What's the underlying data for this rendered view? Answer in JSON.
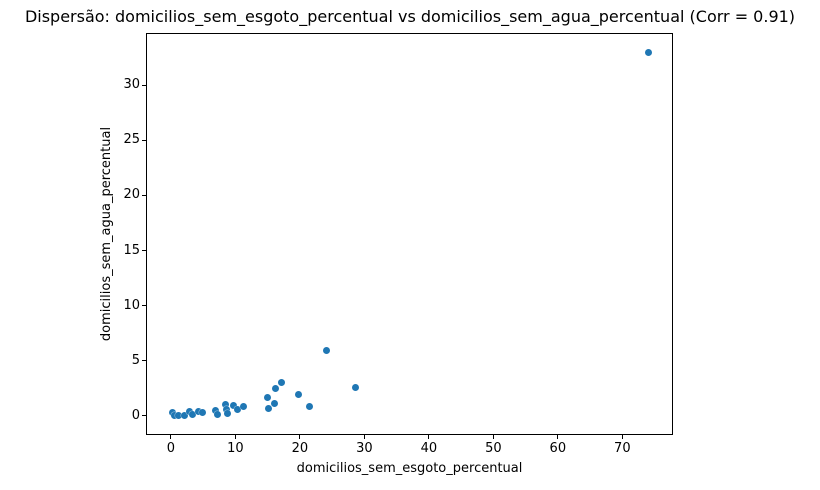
{
  "chart_data": {
    "type": "scatter",
    "title": "Dispersão: domicilios_sem_esgoto_percentual vs domicilios_sem_agua_percentual (Corr = 0.91)",
    "xlabel": "domicilios_sem_esgoto_percentual",
    "ylabel": "domicilios_sem_agua_percentual",
    "correlation": 0.91,
    "marker_color": "#1f77b4",
    "grid": false,
    "legend": "none",
    "xlim": [
      -3.7,
      77.7
    ],
    "ylim": [
      -1.65,
      34.65
    ],
    "x_ticks": [
      0,
      10,
      20,
      30,
      40,
      50,
      60,
      70
    ],
    "y_ticks": [
      0,
      5,
      10,
      15,
      20,
      25,
      30
    ],
    "points": [
      [
        0.2,
        0.3
      ],
      [
        0.5,
        0.05
      ],
      [
        1.2,
        0.0
      ],
      [
        2.1,
        0.05
      ],
      [
        2.9,
        0.35
      ],
      [
        3.4,
        0.1
      ],
      [
        4.3,
        0.4
      ],
      [
        4.9,
        0.3
      ],
      [
        6.9,
        0.45
      ],
      [
        7.3,
        0.1
      ],
      [
        8.5,
        1.0
      ],
      [
        8.6,
        0.6
      ],
      [
        8.8,
        0.2
      ],
      [
        9.7,
        0.9
      ],
      [
        10.3,
        0.6
      ],
      [
        11.3,
        0.85
      ],
      [
        15.0,
        1.65
      ],
      [
        15.1,
        0.65
      ],
      [
        16.0,
        1.1
      ],
      [
        16.3,
        2.5
      ],
      [
        17.2,
        3.0
      ],
      [
        19.8,
        1.9
      ],
      [
        21.5,
        0.85
      ],
      [
        24.2,
        5.9
      ],
      [
        28.7,
        2.55
      ],
      [
        74.0,
        33.0
      ]
    ]
  }
}
